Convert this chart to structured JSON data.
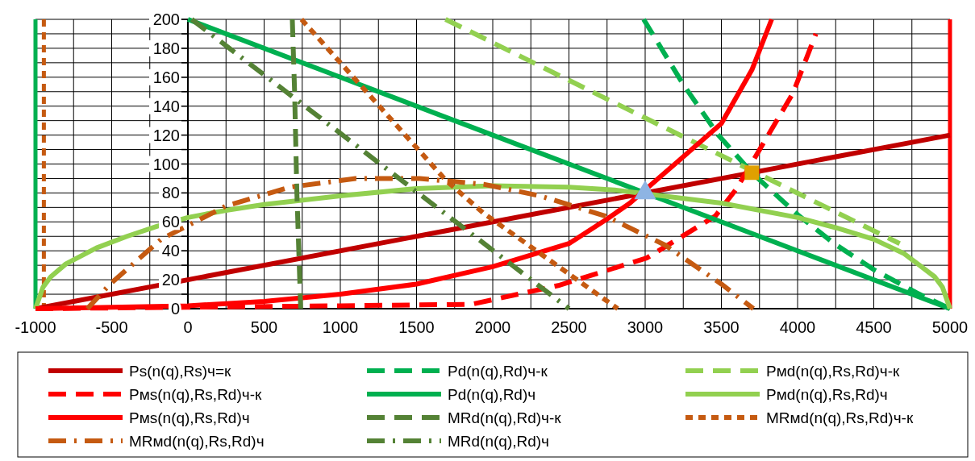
{
  "chart_data": {
    "type": "line",
    "xlim": [
      -1000,
      5000
    ],
    "ylim": [
      0,
      200
    ],
    "xticks": [
      -1000,
      {
        "value": -750,
        "label": null
      },
      -500,
      {
        "value": -250,
        "label": null
      },
      0,
      {
        "value": 250,
        "label": null
      },
      500,
      {
        "value": 750,
        "label": null
      },
      1000,
      {
        "value": 1250,
        "label": null
      },
      1500,
      {
        "value": 1750,
        "label": null
      },
      2000,
      {
        "value": 2250,
        "label": null
      },
      2500,
      {
        "value": 2750,
        "label": null
      },
      3000,
      {
        "value": 3250,
        "label": null
      },
      3500,
      {
        "value": 3750,
        "label": null
      },
      4000,
      {
        "value": 4250,
        "label": null
      },
      4500,
      {
        "value": 4750,
        "label": null
      },
      5000
    ],
    "yticks": [
      0,
      {
        "value": 10,
        "label": null
      },
      20,
      {
        "value": 30,
        "label": null
      },
      40,
      {
        "value": 50,
        "label": null
      },
      60,
      {
        "value": 70,
        "label": null
      },
      80,
      {
        "value": 90,
        "label": null
      },
      100,
      {
        "value": 110,
        "label": null
      },
      120,
      {
        "value": 130,
        "label": null
      },
      140,
      {
        "value": 150,
        "label": null
      },
      160,
      {
        "value": 170,
        "label": null
      },
      180,
      {
        "value": 190,
        "label": null
      },
      200
    ],
    "grid": true,
    "legend": "bottom",
    "ref_lines": [
      {
        "axis": "x",
        "value": -1000,
        "color": "#00b050",
        "line_style": "solid"
      },
      {
        "axis": "x",
        "value": -945,
        "color": "#c55a11",
        "line_style": "dotted"
      },
      {
        "axis": "x",
        "value": 5000,
        "color": "#ff0000",
        "line_style": "solid"
      }
    ],
    "series": [
      {
        "name": "Ps(n(q),Rs)ч=к",
        "color": "#c00000",
        "line_style": "solid",
        "x": [
          -1000,
          5000
        ],
        "values": [
          0,
          120
        ]
      },
      {
        "name": "Pd(n(q),Rd)ч-к",
        "color": "#00b050",
        "line_style": "dashed",
        "x": [
          2990,
          3250,
          3480,
          3700,
          4000,
          4240,
          4500,
          4780,
          5000
        ],
        "values": [
          200,
          155,
          120,
          94,
          65,
          45,
          27,
          11,
          0
        ]
      },
      {
        "name": "Pмd(n(q),Rs,Rd)ч-к",
        "color": "#92d050",
        "line_style": "dashed",
        "x": [
          1690,
          4670
        ],
        "values": [
          200,
          45
        ]
      },
      {
        "name": "Pмs(n(q),Rs,Rd)ч-к",
        "color": "#ff0000",
        "line_style": "dashed",
        "x": [
          -1000,
          0,
          1000,
          1860,
          2430,
          3010,
          3460,
          3600,
          3970,
          4120
        ],
        "values": [
          0,
          1,
          2,
          3,
          16,
          35,
          64,
          83,
          149,
          190
        ]
      },
      {
        "name": "Pd(n(q),Rd)ч",
        "color": "#00b050",
        "line_style": "solid",
        "x": [
          0,
          1000,
          2000,
          2800,
          3200,
          4000,
          5000
        ],
        "values": [
          200,
          160,
          120,
          88,
          72,
          40,
          0
        ]
      },
      {
        "name": "Pмd(n(q),Rs,Rd)ч",
        "color": "#92d050",
        "line_style": "solid",
        "x": [
          -1000,
          -950,
          -900,
          -800,
          -600,
          -400,
          -200,
          0,
          250,
          500,
          1000,
          1500,
          2000,
          2500,
          2800,
          3500,
          4000,
          4250,
          4500,
          4700,
          4800,
          4900,
          4950,
          5000
        ],
        "values": [
          0,
          15,
          22,
          31,
          42,
          50,
          57,
          63,
          68,
          72,
          78,
          83,
          85,
          84,
          82,
          73,
          63,
          56,
          48,
          38,
          30,
          22,
          15,
          0
        ]
      },
      {
        "name": "Pмs(n(q),Rs,Rd)ч",
        "color": "#ff0000",
        "line_style": "solid",
        "x": [
          -1000,
          0,
          500,
          1000,
          1500,
          2000,
          2500,
          2750,
          2900,
          3250,
          3500,
          3700,
          3830
        ],
        "values": [
          0,
          2,
          5,
          10,
          17,
          29,
          45,
          62,
          73,
          105,
          128,
          165,
          200
        ]
      },
      {
        "name": "MRd(n(q),Rd)ч-к",
        "color": "#548235",
        "line_style": "dashed",
        "x": [
          685,
          700,
          715,
          740
        ],
        "values": [
          200,
          150,
          80,
          0
        ]
      },
      {
        "name": "MRмd(n(q),Rs,Rd)ч-к",
        "color": "#c55a11",
        "line_style": "dotted",
        "x": [
          745,
          1690,
          1940,
          2820
        ],
        "values": [
          200,
          89,
          66,
          0
        ]
      },
      {
        "name": "MRмd(n(q),Rs,Rd)ч",
        "color": "#c55a11",
        "line_style": "dashdot",
        "x": [
          -660,
          -510,
          -175,
          250,
          670,
          1100,
          1520,
          1940,
          2310,
          2740,
          3130,
          3500,
          3710
        ],
        "values": [
          0,
          17,
          48,
          71,
          84,
          90,
          90,
          86,
          78,
          64,
          44,
          17,
          0
        ]
      },
      {
        "name": "MRd(n(q),Rd)ч",
        "color": "#548235",
        "line_style": "dashdot",
        "x": [
          25,
          2500
        ],
        "values": [
          200,
          0
        ]
      },
      {
        "type": "scatter",
        "color": "#8eb4e3",
        "marker": "triangle",
        "x": [
          3000
        ],
        "values": [
          80
        ]
      },
      {
        "type": "scatter",
        "color": "#e0a000",
        "marker": "square",
        "x": [
          3700
        ],
        "values": [
          94
        ]
      }
    ]
  }
}
